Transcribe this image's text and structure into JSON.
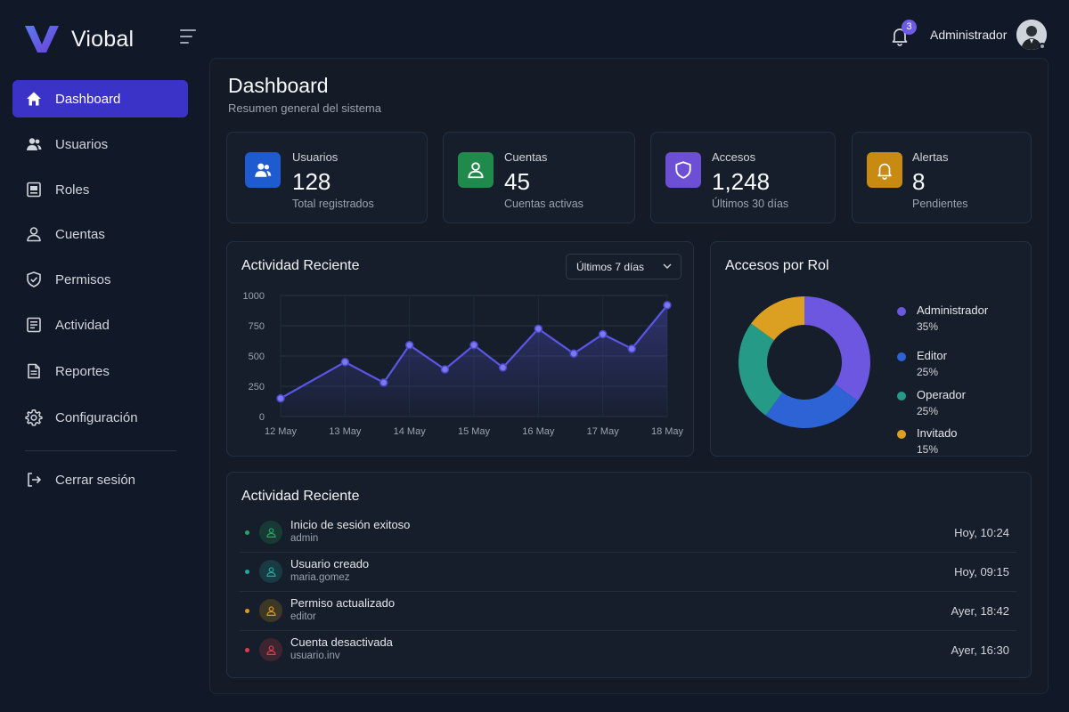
{
  "app": {
    "name": "Viobal"
  },
  "header": {
    "notification_count": "3",
    "user_name": "Administrador"
  },
  "sidebar": {
    "items": [
      {
        "label": "Dashboard",
        "icon": "home-icon",
        "active": true
      },
      {
        "label": "Usuarios",
        "icon": "users-icon"
      },
      {
        "label": "Roles",
        "icon": "roles-icon"
      },
      {
        "label": "Cuentas",
        "icon": "account-icon"
      },
      {
        "label": "Permisos",
        "icon": "shield-check-icon"
      },
      {
        "label": "Actividad",
        "icon": "activity-list-icon"
      },
      {
        "label": "Reportes",
        "icon": "report-file-icon"
      },
      {
        "label": "Configuración",
        "icon": "gear-icon"
      }
    ],
    "logout_label": "Cerrar sesión"
  },
  "page": {
    "title": "Dashboard",
    "subtitle": "Resumen general del sistema"
  },
  "stats": [
    {
      "label": "Usuarios",
      "value": "128",
      "sub": "Total registrados",
      "color": "#1e5bd0",
      "icon": "users-icon"
    },
    {
      "label": "Cuentas",
      "value": "45",
      "sub": "Cuentas activas",
      "color": "#1f8a4c",
      "icon": "user-icon"
    },
    {
      "label": "Accesos",
      "value": "1,248",
      "sub": "Últimos 30 días",
      "color": "#6d4fd6",
      "icon": "shield-icon"
    },
    {
      "label": "Alertas",
      "value": "8",
      "sub": "Pendientes",
      "color": "#c98a12",
      "icon": "bell-icon"
    }
  ],
  "activity_chart": {
    "title": "Actividad Reciente",
    "range_label": "Últimos 7 días"
  },
  "role_chart": {
    "title": "Accesos por Rol"
  },
  "chart_data": [
    {
      "type": "area",
      "title": "Actividad Reciente",
      "xlabel": "",
      "ylabel": "",
      "ylim": [
        0,
        1000
      ],
      "yticks": [
        0,
        250,
        500,
        750,
        1000
      ],
      "x_tick_labels": [
        "12 May",
        "13 May",
        "14 May",
        "15 May",
        "16 May",
        "17 May",
        "18 May"
      ],
      "x": [
        0,
        1,
        1.6,
        2,
        2.55,
        3,
        3.45,
        4,
        4.55,
        5,
        5.45,
        6
      ],
      "values": [
        150,
        450,
        280,
        590,
        390,
        590,
        405,
        725,
        520,
        680,
        560,
        920
      ],
      "color": "#5b57e6",
      "grid": true
    },
    {
      "type": "pie",
      "title": "Accesos por Rol",
      "donut": true,
      "labels": [
        "Administrador",
        "Editor",
        "Operador",
        "Invitado"
      ],
      "values": [
        35,
        25,
        25,
        15
      ],
      "value_labels": [
        "35%",
        "25%",
        "25%",
        "15%"
      ],
      "colors": [
        "#6d56e0",
        "#2e63d6",
        "#259a86",
        "#dba021"
      ]
    }
  ],
  "recent_activity": {
    "title": "Actividad Reciente",
    "items": [
      {
        "title": "Inicio de sesión exitoso",
        "user": "admin",
        "time": "Hoy, 10:24",
        "color": "#22a861"
      },
      {
        "title": "Usuario creado",
        "user": "maria.gomez",
        "time": "Hoy, 09:15",
        "color": "#21a8a0"
      },
      {
        "title": "Permiso actualizado",
        "user": "editor",
        "time": "Ayer, 18:42",
        "color": "#dd9a18"
      },
      {
        "title": "Cuenta desactivada",
        "user": "usuario.inv",
        "time": "Ayer, 16:30",
        "color": "#dc3d4b"
      }
    ]
  }
}
